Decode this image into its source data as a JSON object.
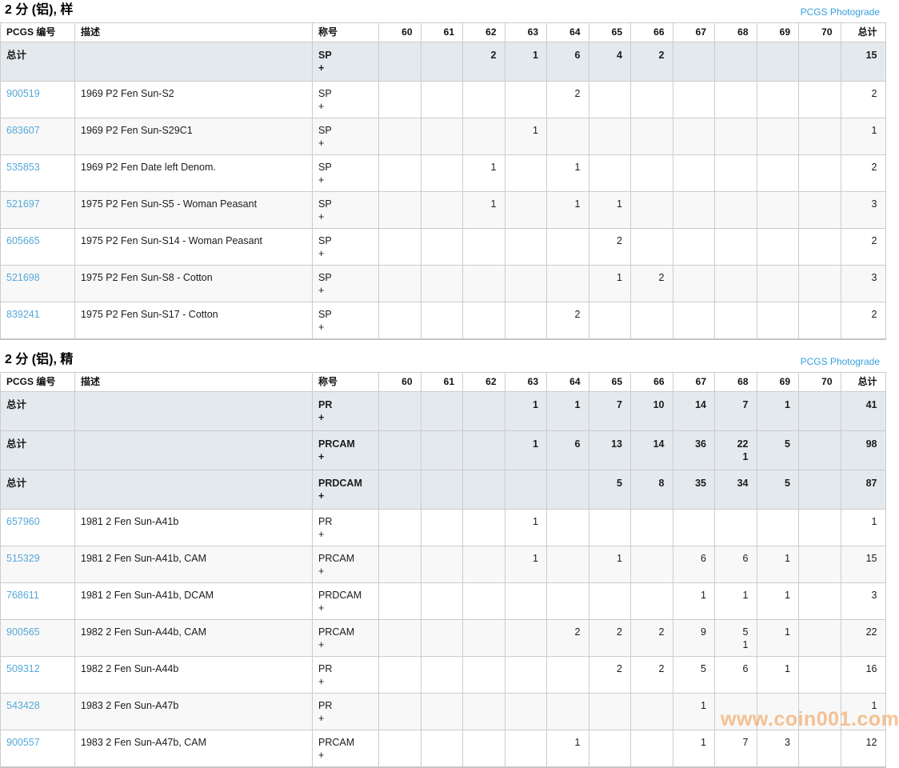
{
  "watermark": "www.coin001.com",
  "photograde_link": "PCGS Photograde",
  "columns": {
    "number": "PCGS 编号",
    "description": "描述",
    "designation": "称号",
    "grades": [
      "60",
      "61",
      "62",
      "63",
      "64",
      "65",
      "66",
      "67",
      "68",
      "69",
      "70"
    ],
    "total": "总计"
  },
  "tables": [
    {
      "title": "2 分 (铝), 样",
      "rows": [
        {
          "type": "summary",
          "number": "总计",
          "description": "",
          "designation": "SP",
          "plus": "+",
          "grades": [
            "",
            "",
            "2",
            "1",
            "6",
            "4",
            "2",
            "",
            "",
            "",
            ""
          ],
          "total": "15"
        },
        {
          "type": "data",
          "number": "900519",
          "description": "1969 P2 Fen Sun-S2",
          "designation": "SP",
          "plus": "+",
          "grades": [
            "",
            "",
            "",
            "",
            "2",
            "",
            "",
            "",
            "",
            "",
            ""
          ],
          "total": "2"
        },
        {
          "type": "data",
          "number": "683607",
          "description": "1969 P2 Fen Sun-S29C1",
          "designation": "SP",
          "plus": "+",
          "grades": [
            "",
            "",
            "",
            "1",
            "",
            "",
            "",
            "",
            "",
            "",
            ""
          ],
          "total": "1"
        },
        {
          "type": "data",
          "number": "535853",
          "description": "1969 P2 Fen Date left Denom.",
          "designation": "SP",
          "plus": "+",
          "grades": [
            "",
            "",
            "1",
            "",
            "1",
            "",
            "",
            "",
            "",
            "",
            ""
          ],
          "total": "2"
        },
        {
          "type": "data",
          "number": "521697",
          "description": "1975 P2 Fen Sun-S5 - Woman Peasant",
          "designation": "SP",
          "plus": "+",
          "grades": [
            "",
            "",
            "1",
            "",
            "1",
            "1",
            "",
            "",
            "",
            "",
            ""
          ],
          "total": "3"
        },
        {
          "type": "data",
          "number": "605665",
          "description": "1975 P2 Fen Sun-S14 - Woman Peasant",
          "designation": "SP",
          "plus": "+",
          "grades": [
            "",
            "",
            "",
            "",
            "",
            "2",
            "",
            "",
            "",
            "",
            ""
          ],
          "total": "2"
        },
        {
          "type": "data",
          "number": "521698",
          "description": "1975 P2 Fen Sun-S8 - Cotton",
          "designation": "SP",
          "plus": "+",
          "grades": [
            "",
            "",
            "",
            "",
            "",
            "1",
            "2",
            "",
            "",
            "",
            ""
          ],
          "total": "3"
        },
        {
          "type": "data",
          "number": "839241",
          "description": "1975 P2 Fen Sun-S17 - Cotton",
          "designation": "SP",
          "plus": "+",
          "grades": [
            "",
            "",
            "",
            "",
            "2",
            "",
            "",
            "",
            "",
            "",
            ""
          ],
          "total": "2"
        }
      ]
    },
    {
      "title": "2 分 (铝), 精",
      "rows": [
        {
          "type": "summary",
          "number": "总计",
          "description": "",
          "designation": "PR",
          "plus": "+",
          "grades": [
            "",
            "",
            "",
            "1",
            "1",
            "7",
            "10",
            "14",
            "7",
            "1",
            ""
          ],
          "total": "41"
        },
        {
          "type": "summary",
          "number": "总计",
          "description": "",
          "designation": "PRCAM",
          "plus": "+",
          "grades": [
            "",
            "",
            "",
            "1",
            "6",
            "13",
            "14",
            "36",
            [
              "22",
              "1"
            ],
            "5",
            ""
          ],
          "total": "98"
        },
        {
          "type": "summary",
          "number": "总计",
          "description": "",
          "designation": "PRDCAM",
          "plus": "+",
          "grades": [
            "",
            "",
            "",
            "",
            "",
            "5",
            "8",
            "35",
            "34",
            "5",
            ""
          ],
          "total": "87"
        },
        {
          "type": "data",
          "number": "657960",
          "description": "1981 2 Fen Sun-A41b",
          "designation": "PR",
          "plus": "+",
          "grades": [
            "",
            "",
            "",
            "1",
            "",
            "",
            "",
            "",
            "",
            "",
            ""
          ],
          "total": "1"
        },
        {
          "type": "data",
          "number": "515329",
          "description": "1981 2 Fen Sun-A41b, CAM",
          "designation": "PRCAM",
          "plus": "+",
          "grades": [
            "",
            "",
            "",
            "1",
            "",
            "1",
            "",
            "6",
            "6",
            "1",
            ""
          ],
          "total": "15"
        },
        {
          "type": "data",
          "number": "768611",
          "description": "1981 2 Fen Sun-A41b, DCAM",
          "designation": "PRDCAM",
          "plus": "+",
          "grades": [
            "",
            "",
            "",
            "",
            "",
            "",
            "",
            "1",
            "1",
            "1",
            ""
          ],
          "total": "3"
        },
        {
          "type": "data",
          "number": "900565",
          "description": "1982 2 Fen Sun-A44b, CAM",
          "designation": "PRCAM",
          "plus": "+",
          "grades": [
            "",
            "",
            "",
            "",
            "2",
            "2",
            "2",
            "9",
            [
              "5",
              "1"
            ],
            "1",
            ""
          ],
          "total": "22"
        },
        {
          "type": "data",
          "number": "509312",
          "description": "1982 2 Fen Sun-A44b",
          "designation": "PR",
          "plus": "+",
          "grades": [
            "",
            "",
            "",
            "",
            "",
            "2",
            "2",
            "5",
            "6",
            "1",
            ""
          ],
          "total": "16"
        },
        {
          "type": "data",
          "number": "543428",
          "description": "1983 2 Fen Sun-A47b",
          "designation": "PR",
          "plus": "+",
          "grades": [
            "",
            "",
            "",
            "",
            "",
            "",
            "",
            "1",
            "",
            "",
            ""
          ],
          "total": "1"
        },
        {
          "type": "data",
          "number": "900557",
          "description": "1983 2 Fen Sun-A47b, CAM",
          "designation": "PRCAM",
          "plus": "+",
          "grades": [
            "",
            "",
            "",
            "",
            "1",
            "",
            "",
            "1",
            "7",
            "3",
            ""
          ],
          "total": "12"
        }
      ]
    }
  ]
}
